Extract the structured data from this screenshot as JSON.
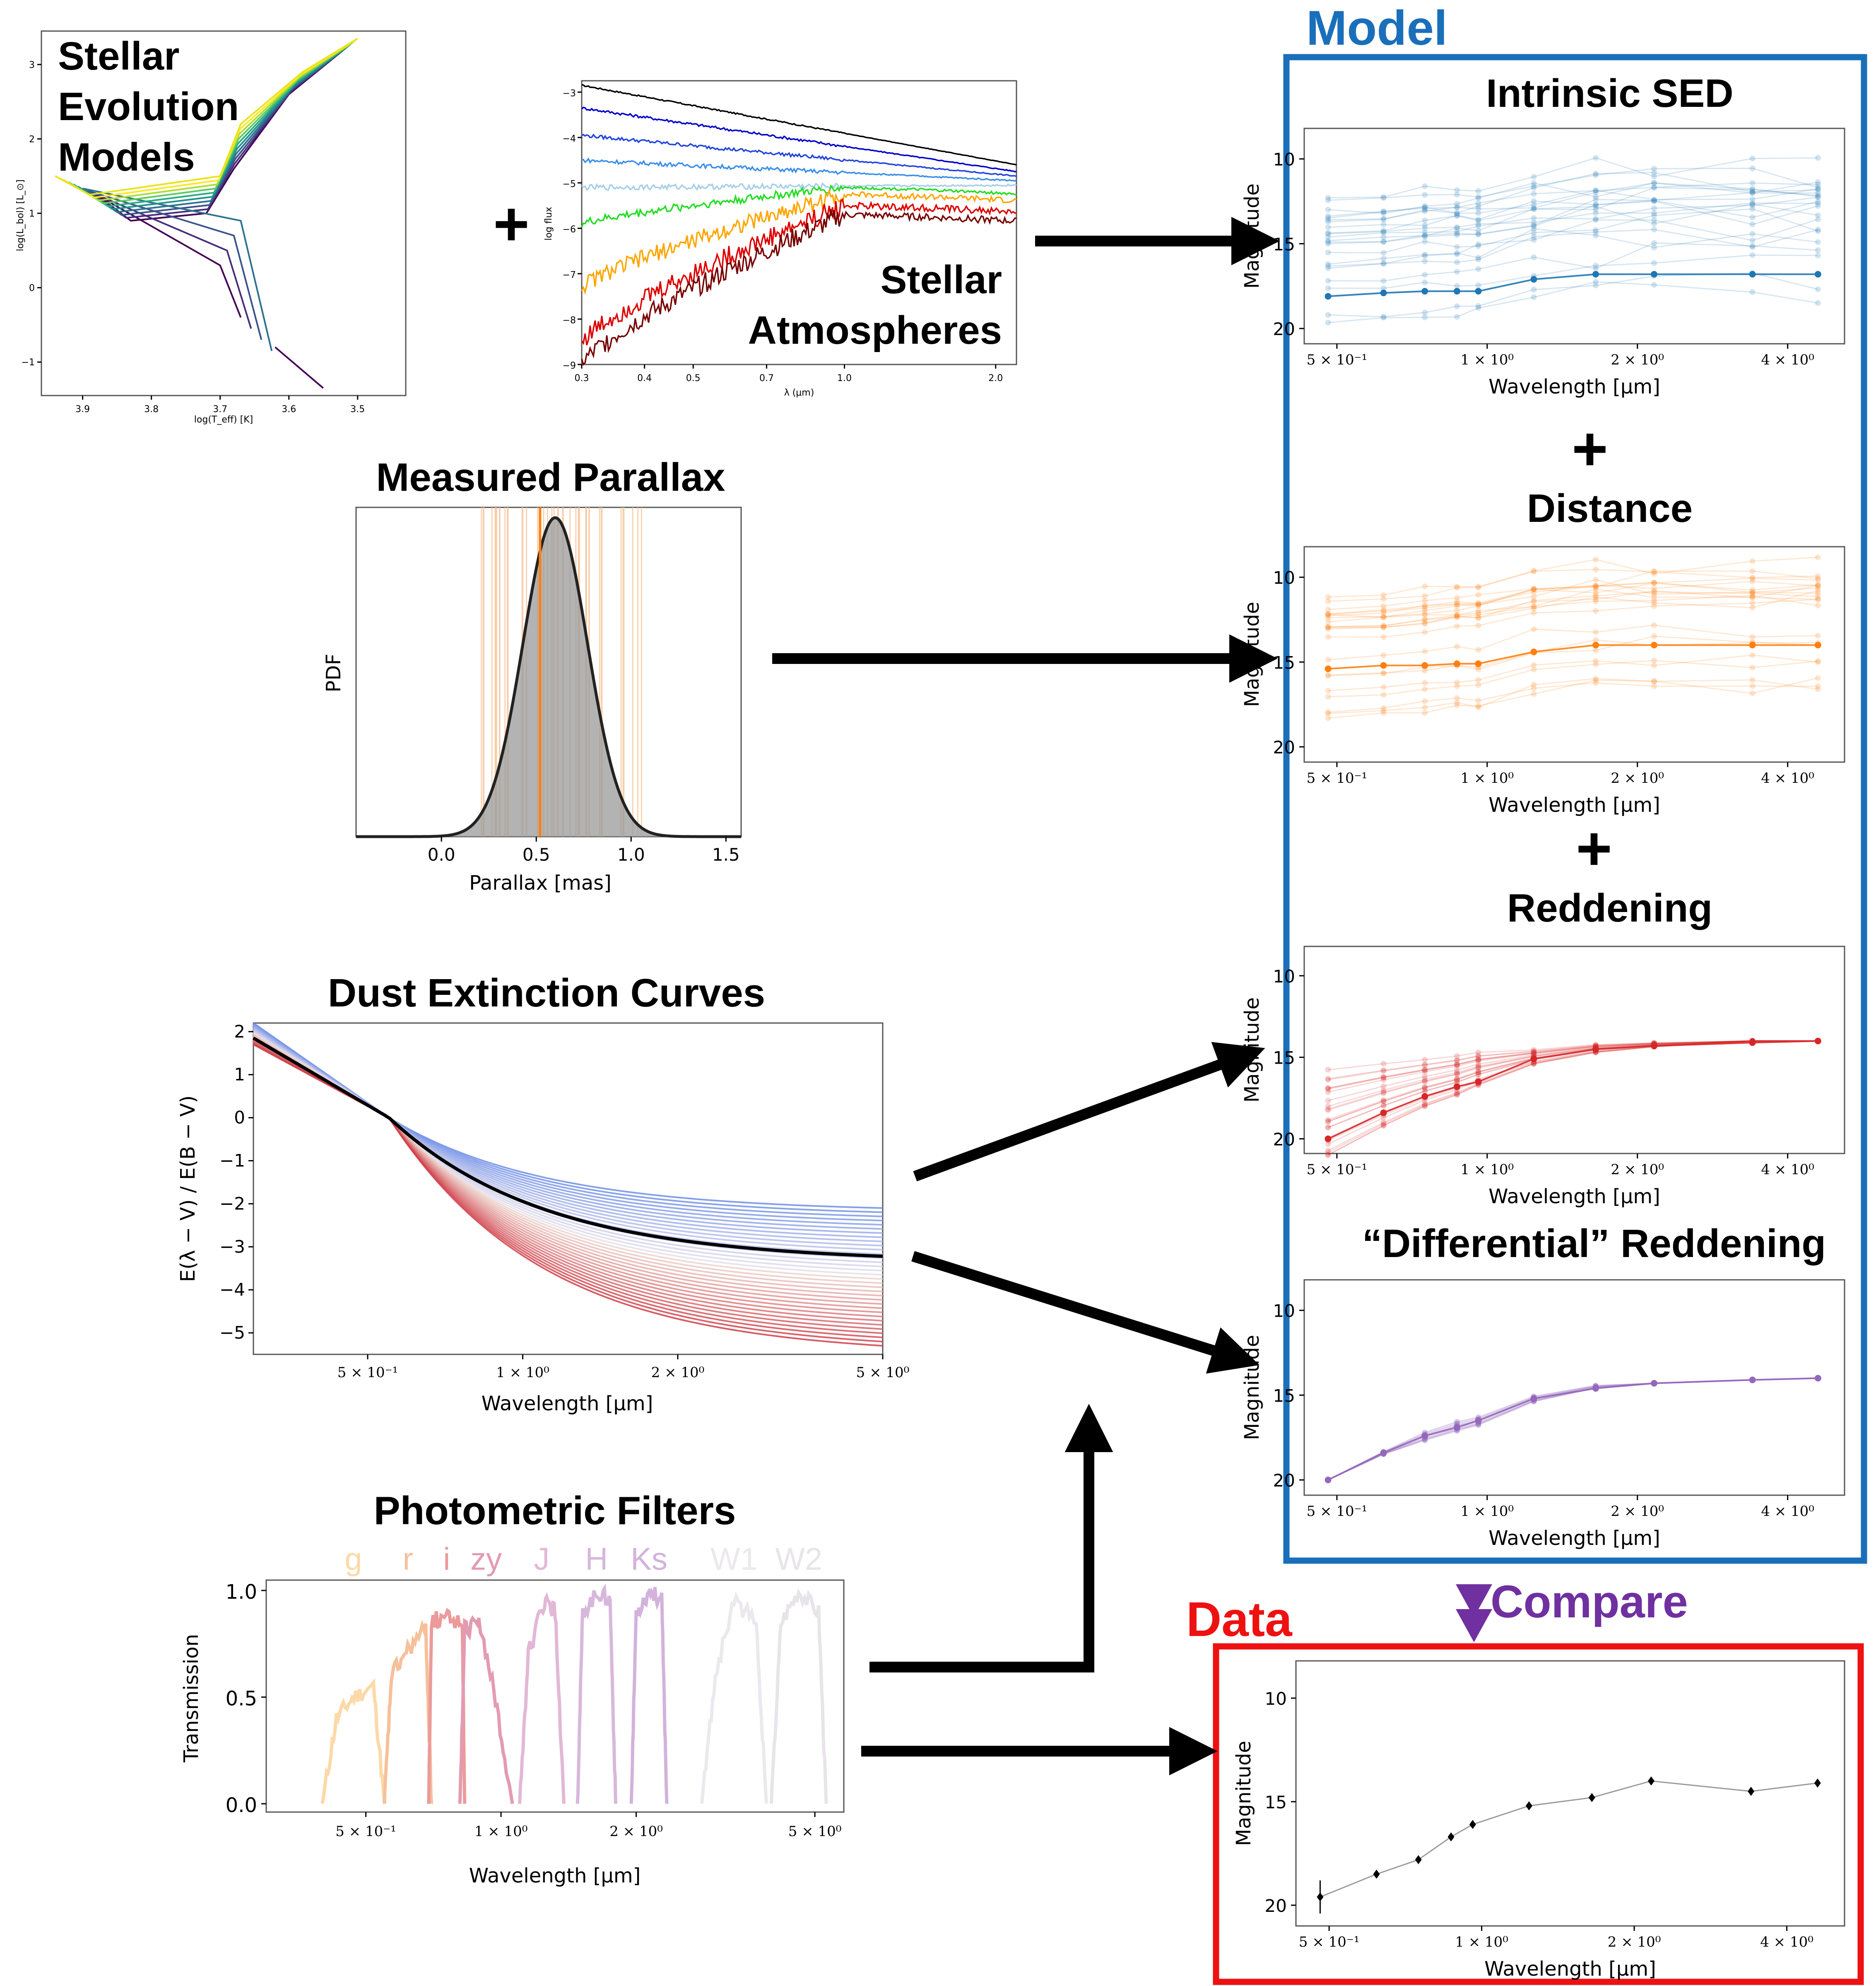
{
  "labels": {
    "stellar_evolution": [
      "Stellar",
      "Evolution",
      "Models"
    ],
    "plus": "+",
    "stellar_atmospheres": [
      "Stellar",
      "Atmospheres"
    ],
    "measured_parallax": "Measured Parallax",
    "dust_extinction": "Dust Extinction Curves",
    "photometric_filters": "Photometric Filters",
    "model": "Model",
    "data": "Data",
    "compare": "Compare",
    "intrinsic_sed": "Intrinsic SED",
    "distance": "Distance",
    "reddening": "Reddening",
    "differential_reddening": "“Differential” Reddening"
  },
  "colors": {
    "model_box": "#1a6fba",
    "data_box": "#ee1111",
    "compare": "#7030a0",
    "blue_sed": "#1f77b4",
    "orange_sed": "#ff7f0e",
    "red_sed": "#d62728",
    "purple_sed": "#9467bd"
  },
  "axes": {
    "hr_xlabel": "log(T_eff) [K]",
    "hr_ylabel": "log(L_bol) [L_⊙]",
    "hr_xticks": [
      "3.9",
      "3.8",
      "3.7",
      "3.6",
      "3.5"
    ],
    "hr_yticks": [
      "3",
      "2",
      "1",
      "0",
      "−1"
    ],
    "spec_xlabel": "λ (μm)",
    "spec_ylabel": "log flux",
    "spec_xticks": [
      "0.3",
      "0.4",
      "0.5",
      "0.7",
      "1.0",
      "2.0"
    ],
    "spec_yticks": [
      "−3",
      "−4",
      "−5",
      "−6",
      "−7",
      "−8",
      "−9"
    ],
    "parallax_xlabel": "Parallax [mas]",
    "parallax_ylabel": "PDF",
    "parallax_xticks": [
      "0.0",
      "0.5",
      "1.0",
      "1.5"
    ],
    "dust_xlabel": "Wavelength [μm]",
    "dust_ylabel": "E(λ − V) / E(B − V)",
    "dust_yticks": [
      "2",
      "1",
      "0",
      "−1",
      "−2",
      "−3",
      "−4",
      "−5"
    ],
    "dust_xticks": [
      "5 × 10⁻¹",
      "1 × 10⁰",
      "2 × 10⁰",
      "5 × 10⁰"
    ],
    "filter_xlabel": "Wavelength [μm]",
    "filter_ylabel": "Transmission",
    "filter_yticks": [
      "1.0",
      "0.5",
      "0.0"
    ],
    "filter_xticks": [
      "5 × 10⁻¹",
      "1 × 10⁰",
      "2 × 10⁰",
      "5 × 10⁰"
    ],
    "sed_xlabel": "Wavelength [μm]",
    "sed_ylabel": "Magnitude",
    "sed_yticks": [
      "10",
      "15",
      "20"
    ],
    "sed_xticks": [
      "5 × 10⁻¹",
      "1 × 10⁰",
      "2 × 10⁰",
      "4 × 10⁰"
    ]
  },
  "filters": [
    {
      "name": "g",
      "color": "#fcd9a8"
    },
    {
      "name": "r",
      "color": "#f6c09a"
    },
    {
      "name": "i",
      "color": "#ec9a9a"
    },
    {
      "name": "zy",
      "color": "#e39bb0"
    },
    {
      "name": "J",
      "color": "#e2b8d6"
    },
    {
      "name": "H",
      "color": "#d8b7dc"
    },
    {
      "name": "Ks",
      "color": "#d3b2dc"
    },
    {
      "name": "W1",
      "color": "#ece8ee"
    },
    {
      "name": "W2",
      "color": "#e8e4ea"
    }
  ],
  "chart_data": [
    {
      "type": "line",
      "title": "Measured Parallax",
      "xlabel": "Parallax [mas]",
      "ylabel": "PDF",
      "x_range": [
        -0.45,
        1.58
      ],
      "distribution": {
        "shape": "gaussian",
        "mean": 0.6,
        "sigma": 0.17
      },
      "measured_value": 0.52
    },
    {
      "type": "line",
      "title": "Dust Extinction Curves",
      "xlabel": "Wavelength [μm]",
      "ylabel": "E(λ − V) / E(B − V)",
      "xscale": "log",
      "ylim": [
        -5.5,
        2.2
      ],
      "x": [
        0.3,
        0.44,
        0.55,
        0.7,
        1.0,
        1.5,
        2.2,
        3.5,
        5.0
      ],
      "reference_curve": [
        1.8,
        0.62,
        0.0,
        -0.6,
        -1.6,
        -2.4,
        -2.85,
        -3.1,
        -3.2
      ],
      "family_range_at_longest": [
        -2.1,
        -5.3
      ]
    },
    {
      "type": "line",
      "title": "Photometric Filters",
      "xlabel": "Wavelength [μm]",
      "ylabel": "Transmission",
      "xscale": "log",
      "ylim": [
        0.0,
        1.0
      ],
      "series": [
        {
          "name": "g",
          "x": [
            0.4,
            0.43,
            0.47,
            0.52,
            0.55
          ],
          "y": [
            0.0,
            0.4,
            0.5,
            0.55,
            0.0
          ]
        },
        {
          "name": "r",
          "x": [
            0.55,
            0.57,
            0.62,
            0.68,
            0.7
          ],
          "y": [
            0.0,
            0.6,
            0.72,
            0.82,
            0.0
          ]
        },
        {
          "name": "i",
          "x": [
            0.69,
            0.7,
            0.76,
            0.82,
            0.83
          ],
          "y": [
            0.0,
            0.86,
            0.87,
            0.85,
            0.0
          ]
        },
        {
          "name": "zy",
          "x": [
            0.81,
            0.83,
            0.9,
            0.98,
            1.06
          ],
          "y": [
            0.0,
            0.82,
            0.84,
            0.45,
            0.0
          ]
        },
        {
          "name": "J",
          "x": [
            1.1,
            1.15,
            1.25,
            1.32,
            1.38
          ],
          "y": [
            0.0,
            0.7,
            0.95,
            0.9,
            0.0
          ]
        },
        {
          "name": "H",
          "x": [
            1.48,
            1.52,
            1.65,
            1.75,
            1.8
          ],
          "y": [
            0.0,
            0.9,
            0.99,
            0.95,
            0.0
          ]
        },
        {
          "name": "Ks",
          "x": [
            1.95,
            2.0,
            2.15,
            2.28,
            2.34
          ],
          "y": [
            0.0,
            0.9,
            1.0,
            0.95,
            0.0
          ]
        },
        {
          "name": "W1",
          "x": [
            2.8,
            3.0,
            3.3,
            3.7,
            3.9
          ],
          "y": [
            0.0,
            0.6,
            0.95,
            0.85,
            0.0
          ]
        },
        {
          "name": "W2",
          "x": [
            4.0,
            4.2,
            4.6,
            5.1,
            5.3
          ],
          "y": [
            0.0,
            0.85,
            1.0,
            0.9,
            0.0
          ]
        }
      ]
    },
    {
      "type": "scatter",
      "title": "Data",
      "xlabel": "Wavelength [μm]",
      "ylabel": "Magnitude",
      "xscale": "log",
      "ylim": [
        21,
        8.2
      ],
      "x": [
        0.48,
        0.62,
        0.75,
        0.87,
        0.96,
        1.24,
        1.65,
        2.16,
        3.4,
        4.6
      ],
      "y": [
        19.6,
        18.5,
        17.8,
        16.7,
        16.1,
        15.2,
        14.8,
        14.0,
        14.5,
        14.1
      ],
      "y_err": [
        0.8,
        0.15,
        0.15,
        0.12,
        0.1,
        0.08,
        0.08,
        0.08,
        0.08,
        0.08
      ]
    }
  ]
}
